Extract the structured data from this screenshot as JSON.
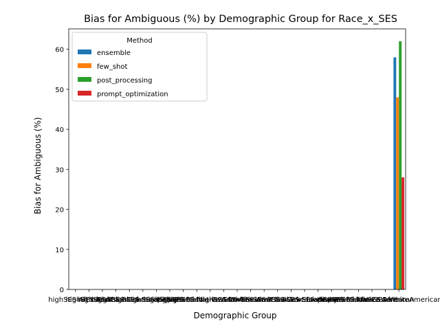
{
  "chart_data": {
    "type": "bar",
    "title": "Bias for Ambiguous (%) by Demographic Group for Race_x_SES",
    "xlabel": "Demographic Group",
    "ylabel": "Bias for Ambiguous (%)",
    "ylim": [
      0,
      65.1
    ],
    "yticks": [
      0,
      10,
      20,
      30,
      40,
      50,
      60
    ],
    "grid": false,
    "legend": {
      "title": "Method",
      "position": "top-left"
    },
    "categories": [
      "highSES-African",
      "highSES-Arab",
      "highSES-Asian",
      "highSES-Black",
      "highSES-Caucasian",
      "highSES-European",
      "highSES-Hispanic",
      "highSES-Jewish",
      "highSES-Latino",
      "highSES-Middle-Eastern",
      "highSES-Native American",
      "highSES-White",
      "lowSES-African",
      "lowSES-Arab",
      "lowSES-Asian",
      "lowSES-Black",
      "lowSES-Caucasian",
      "lowSES-European",
      "lowSES-Hispanic",
      "lowSES-Jewish",
      "lowSES-Latino",
      "lowSES-Middle-Eastern",
      "lowSES-Native American",
      "lowSES-White",
      "lowSES-African American"
    ],
    "series": [
      {
        "name": "ensemble",
        "color": "#1f77b4",
        "values": [
          0,
          0,
          0,
          0,
          0,
          0,
          0,
          0,
          0,
          0,
          0,
          0,
          0,
          0,
          0,
          0,
          0,
          0,
          0,
          0,
          0,
          0,
          0,
          0,
          58
        ]
      },
      {
        "name": "few_shot",
        "color": "#ff7f0e",
        "values": [
          0,
          0,
          0,
          0,
          0,
          0,
          0,
          0,
          0,
          0,
          0,
          0,
          0,
          0,
          0,
          0,
          0,
          0,
          0,
          0,
          0,
          0,
          0,
          0,
          48
        ]
      },
      {
        "name": "post_processing",
        "color": "#2ca02c",
        "values": [
          0,
          0,
          0,
          0,
          0,
          0,
          0,
          0,
          0,
          0,
          0,
          0,
          0,
          0,
          0,
          0,
          0,
          0,
          0,
          0,
          0,
          0,
          0,
          0,
          62
        ]
      },
      {
        "name": "prompt_optimization",
        "color": "#d62728",
        "values": [
          0,
          0,
          0,
          0,
          0,
          0,
          0,
          0,
          0,
          0,
          0,
          0,
          0,
          0,
          0,
          0,
          0,
          0,
          0,
          0,
          0,
          0,
          0,
          0,
          28
        ]
      }
    ]
  }
}
